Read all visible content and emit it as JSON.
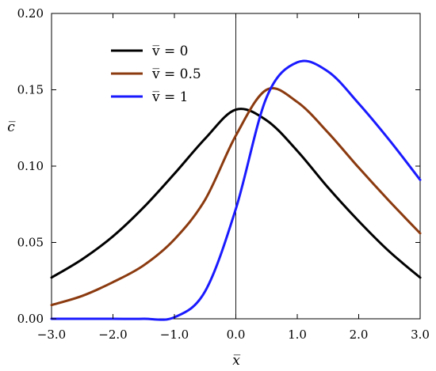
{
  "chart_data": {
    "type": "line",
    "title": "",
    "xlabel": "x̅",
    "ylabel": "c̅",
    "xlim": [
      -3.0,
      3.0
    ],
    "ylim": [
      0.0,
      0.2
    ],
    "x_ticks": [
      "−3.0",
      "−2.0",
      "−1.0",
      "0.0",
      "1.0",
      "2.0",
      "3.0"
    ],
    "y_ticks": [
      "0.00",
      "0.05",
      "0.10",
      "0.15",
      "0.20"
    ],
    "grid": false,
    "vertical_reference_line_x": 0.0,
    "legend_position": "top-left",
    "x": [
      -3.0,
      -2.5,
      -2.0,
      -1.5,
      -1.0,
      -0.5,
      0.0,
      0.5,
      1.0,
      1.5,
      2.0,
      2.5,
      3.0
    ],
    "series": [
      {
        "name": "v̅ = 0",
        "color": "#000000",
        "values": [
          0.027,
          0.039,
          0.054,
          0.073,
          0.095,
          0.118,
          0.137,
          0.13,
          0.11,
          0.086,
          0.064,
          0.044,
          0.027
        ]
      },
      {
        "name": "v̅ = 0.5",
        "color": "#8b3a0f",
        "values": [
          0.009,
          0.015,
          0.024,
          0.035,
          0.052,
          0.078,
          0.12,
          0.15,
          0.142,
          0.122,
          0.099,
          0.077,
          0.056
        ]
      },
      {
        "name": "v̅ = 1",
        "color": "#1a1aff",
        "values": [
          0.0,
          0.0,
          0.0,
          0.0,
          0.001,
          0.018,
          0.072,
          0.145,
          0.168,
          0.162,
          0.141,
          0.117,
          0.091
        ]
      }
    ]
  }
}
